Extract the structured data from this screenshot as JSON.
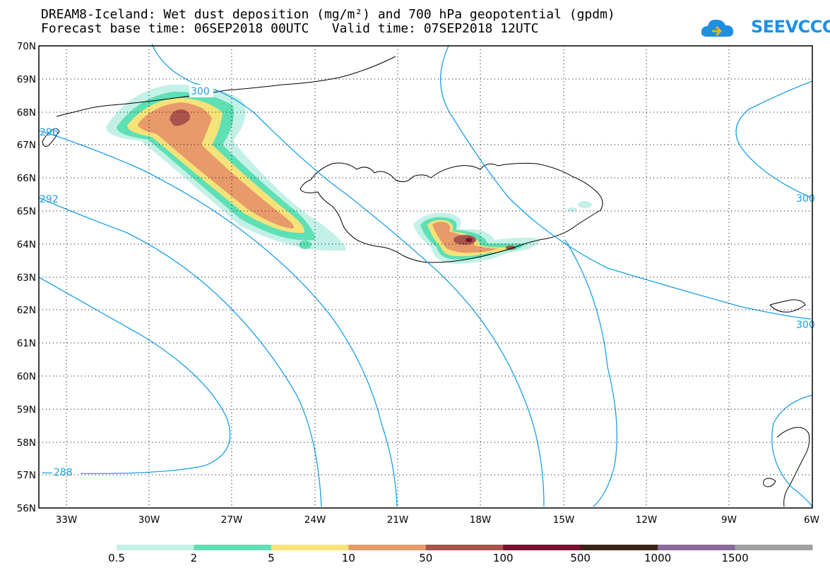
{
  "title_line1": "DREAM8-Iceland: Wet dust deposition (mg/m²) and 700 hPa geopotential (gpdm)",
  "title_line2": "Forecast base time: 06SEP2018 00UTC   Valid time: 07SEP2018 12UTC",
  "logo_text": "SEEVCCC",
  "logo_icon": "cloud-icon",
  "lat_labels": [
    "70N",
    "69N",
    "68N",
    "67N",
    "66N",
    "65N",
    "64N",
    "63N",
    "62N",
    "61N",
    "60N",
    "59N",
    "58N",
    "57N",
    "56N"
  ],
  "lon_labels": [
    "33W",
    "30W",
    "27W",
    "24W",
    "21W",
    "18W",
    "15W",
    "12W",
    "9W",
    "6W"
  ],
  "contour_labels": [
    "300",
    "296",
    "292",
    "288",
    "300",
    "300"
  ],
  "colorbar": {
    "labels": [
      "0.5",
      "2",
      "5",
      "10",
      "50",
      "100",
      "500",
      "1000",
      "1500"
    ],
    "colors": [
      "#c4f1e7",
      "#5ee0b4",
      "#f5e37a",
      "#e89a6a",
      "#a8544c",
      "#7a1030",
      "#3a2418",
      "#8a6a9a",
      "#a0a0a0"
    ]
  },
  "contour_color": "#1a9fe6"
}
